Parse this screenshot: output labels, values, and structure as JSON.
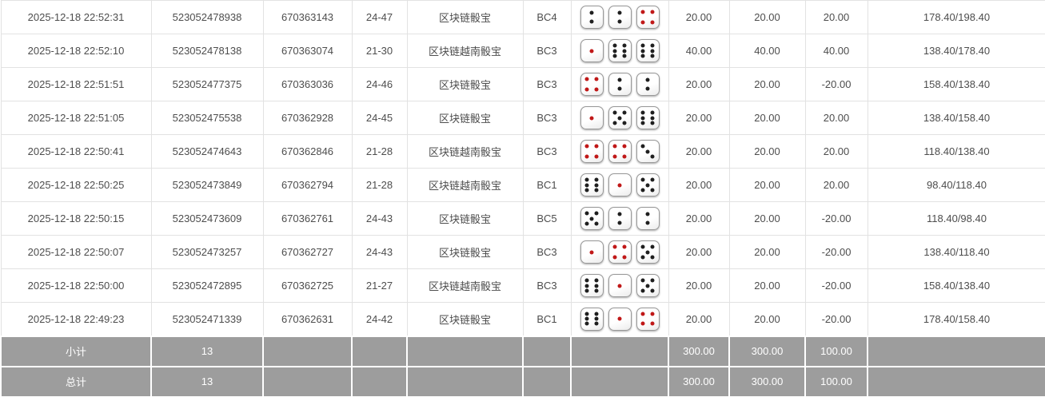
{
  "colors": {
    "bet_blue": "#3168d0",
    "loss_red": "#e8363a",
    "footer_grey": "#9d9d9d",
    "pip_black": "#1f1f1f",
    "pip_red": "#c01818",
    "row_border": "#e2e2e2"
  },
  "table": {
    "rows": [
      {
        "time": "2025-12-18 22:52:31",
        "bet_id": "523052478938",
        "round_id": "670363143",
        "period": "24-47",
        "game": "区块链骰宝",
        "table_code": "BC4",
        "dice": [
          2,
          2,
          4
        ],
        "bet": "20.00",
        "valid": "20.00",
        "win_loss": "20.00",
        "balance": "178.40/198.40"
      },
      {
        "time": "2025-12-18 22:52:10",
        "bet_id": "523052478138",
        "round_id": "670363074",
        "period": "21-30",
        "game": "区块链越南骰宝",
        "table_code": "BC3",
        "dice": [
          1,
          6,
          6
        ],
        "bet": "40.00",
        "valid": "40.00",
        "win_loss": "40.00",
        "balance": "138.40/178.40"
      },
      {
        "time": "2025-12-18 22:51:51",
        "bet_id": "523052477375",
        "round_id": "670363036",
        "period": "24-46",
        "game": "区块链骰宝",
        "table_code": "BC3",
        "dice": [
          4,
          2,
          2
        ],
        "bet": "20.00",
        "valid": "20.00",
        "win_loss": "-20.00",
        "balance": "158.40/138.40"
      },
      {
        "time": "2025-12-18 22:51:05",
        "bet_id": "523052475538",
        "round_id": "670362928",
        "period": "24-45",
        "game": "区块链骰宝",
        "table_code": "BC3",
        "dice": [
          1,
          5,
          6
        ],
        "bet": "20.00",
        "valid": "20.00",
        "win_loss": "20.00",
        "balance": "138.40/158.40"
      },
      {
        "time": "2025-12-18 22:50:41",
        "bet_id": "523052474643",
        "round_id": "670362846",
        "period": "21-28",
        "game": "区块链越南骰宝",
        "table_code": "BC3",
        "dice": [
          4,
          4,
          3
        ],
        "bet": "20.00",
        "valid": "20.00",
        "win_loss": "20.00",
        "balance": "118.40/138.40"
      },
      {
        "time": "2025-12-18 22:50:25",
        "bet_id": "523052473849",
        "round_id": "670362794",
        "period": "21-28",
        "game": "区块链越南骰宝",
        "table_code": "BC1",
        "dice": [
          6,
          1,
          5
        ],
        "bet": "20.00",
        "valid": "20.00",
        "win_loss": "20.00",
        "balance": "98.40/118.40"
      },
      {
        "time": "2025-12-18 22:50:15",
        "bet_id": "523052473609",
        "round_id": "670362761",
        "period": "24-43",
        "game": "区块链骰宝",
        "table_code": "BC5",
        "dice": [
          5,
          2,
          2
        ],
        "bet": "20.00",
        "valid": "20.00",
        "win_loss": "-20.00",
        "balance": "118.40/98.40"
      },
      {
        "time": "2025-12-18 22:50:07",
        "bet_id": "523052473257",
        "round_id": "670362727",
        "period": "24-43",
        "game": "区块链骰宝",
        "table_code": "BC3",
        "dice": [
          1,
          4,
          5
        ],
        "bet": "20.00",
        "valid": "20.00",
        "win_loss": "-20.00",
        "balance": "138.40/118.40"
      },
      {
        "time": "2025-12-18 22:50:00",
        "bet_id": "523052472895",
        "round_id": "670362725",
        "period": "21-27",
        "game": "区块链越南骰宝",
        "table_code": "BC3",
        "dice": [
          6,
          1,
          5
        ],
        "bet": "20.00",
        "valid": "20.00",
        "win_loss": "-20.00",
        "balance": "158.40/138.40"
      },
      {
        "time": "2025-12-18 22:49:23",
        "bet_id": "523052471339",
        "round_id": "670362631",
        "period": "24-42",
        "game": "区块链骰宝",
        "table_code": "BC1",
        "dice": [
          6,
          1,
          4
        ],
        "bet": "20.00",
        "valid": "20.00",
        "win_loss": "-20.00",
        "balance": "178.40/158.40"
      }
    ],
    "subtotal": {
      "label": "小计",
      "count": "13",
      "bet": "300.00",
      "valid": "300.00",
      "win_loss": "100.00"
    },
    "total": {
      "label": "总计",
      "count": "13",
      "bet": "300.00",
      "valid": "300.00",
      "win_loss": "100.00"
    }
  }
}
